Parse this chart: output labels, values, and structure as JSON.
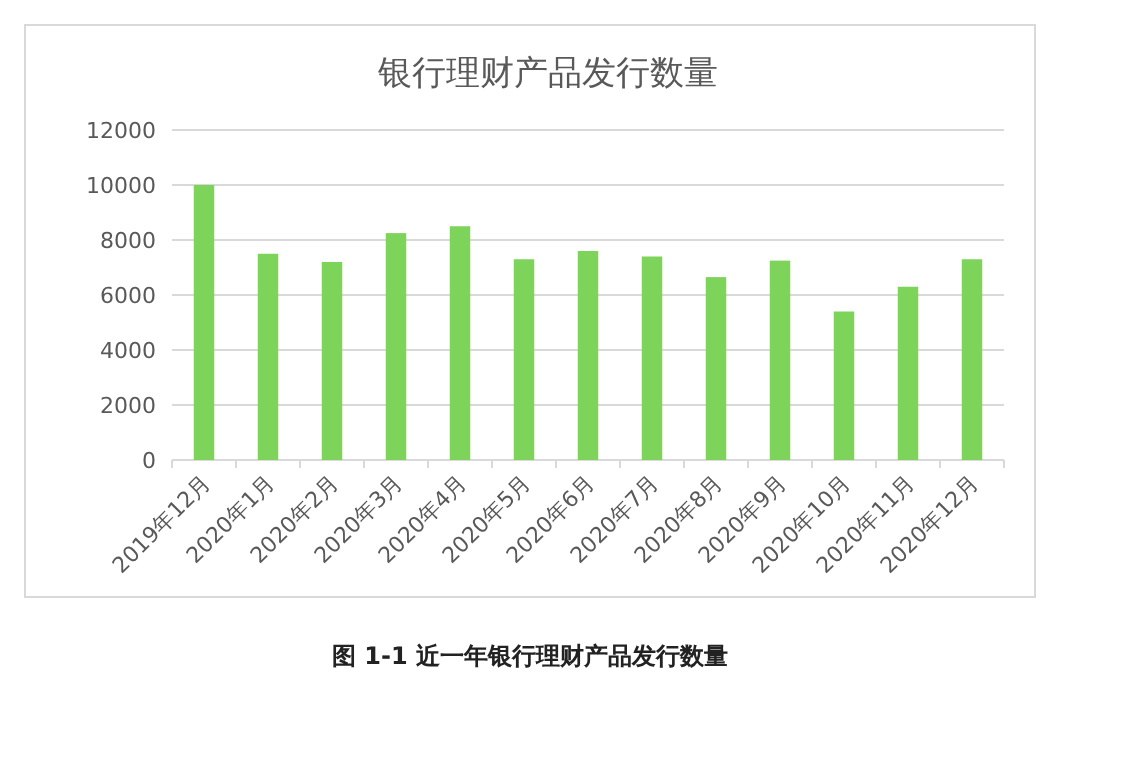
{
  "chart_data": {
    "type": "bar",
    "title": "银行理财产品发行数量",
    "categories": [
      "2019年12月",
      "2020年1月",
      "2020年2月",
      "2020年3月",
      "2020年4月",
      "2020年5月",
      "2020年6月",
      "2020年7月",
      "2020年8月",
      "2020年9月",
      "2020年10月",
      "2020年11月",
      "2020年12月"
    ],
    "values": [
      10000,
      7500,
      7200,
      8250,
      8500,
      7300,
      7600,
      7400,
      6650,
      7250,
      5400,
      6300,
      7300
    ],
    "color": "#7ed35a",
    "ylim": [
      0,
      12000
    ],
    "yticks": [
      0,
      2000,
      4000,
      6000,
      8000,
      10000,
      12000
    ],
    "grid": "y",
    "annotations": [
      "图 1-1  近一年银行理财产品发行数量"
    ]
  }
}
